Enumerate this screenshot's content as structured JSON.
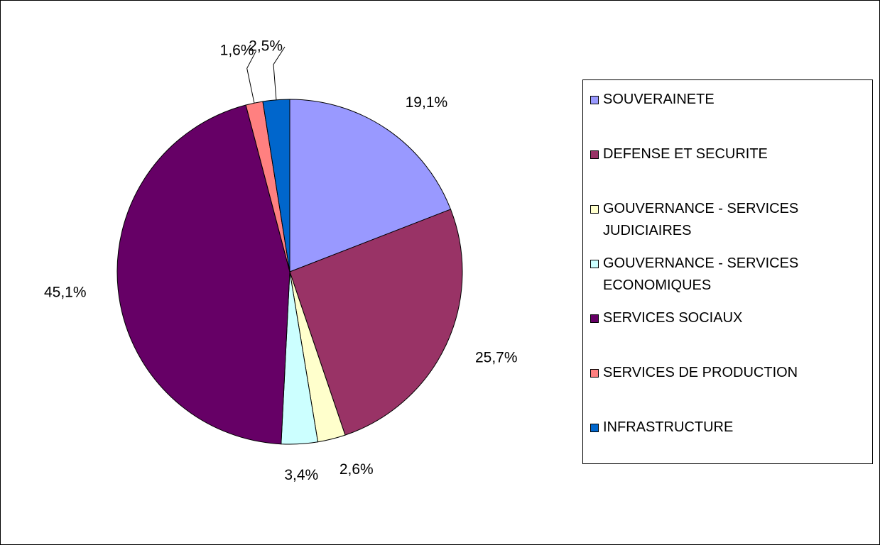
{
  "chart_data": {
    "type": "pie",
    "categories": [
      "SOUVERAINETE",
      "DEFENSE ET SECURITE",
      "GOUVERNANCE - SERVICES JUDICIAIRES",
      "GOUVERNANCE - SERVICES ECONOMIQUES",
      "SERVICES SOCIAUX",
      "SERVICES DE PRODUCTION",
      "INFRASTRUCTURE"
    ],
    "values": [
      19.1,
      25.7,
      2.6,
      3.4,
      45.1,
      1.6,
      2.5
    ],
    "value_labels": [
      "19,1%",
      "25,7%",
      "2,6%",
      "3,4%",
      "45,1%",
      "1,6%",
      "2,5%"
    ],
    "colors": [
      "#9999ff",
      "#993366",
      "#ffffcc",
      "#ccffff",
      "#660066",
      "#ff8080",
      "#0066cc"
    ],
    "legend": "right"
  }
}
